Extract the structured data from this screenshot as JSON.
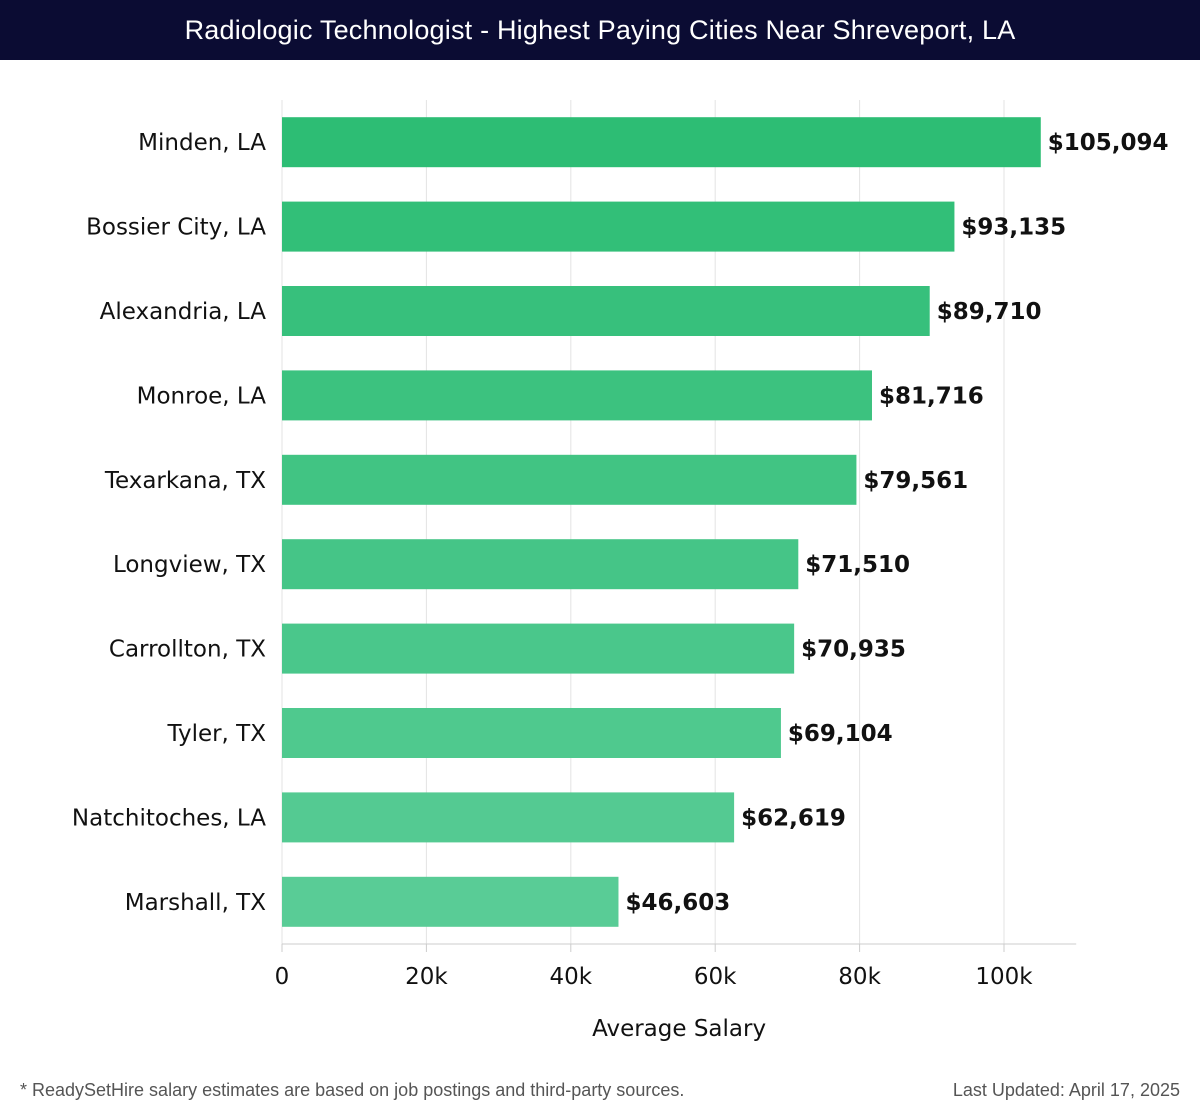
{
  "header": {
    "title": "Radiologic Technologist - Highest Paying Cities Near Shreveport, LA"
  },
  "chart_data": {
    "type": "bar",
    "orientation": "horizontal",
    "title": "Radiologic Technologist - Highest Paying Cities Near Shreveport, LA",
    "xlabel": "Average Salary",
    "ylabel": "",
    "xlim": [
      0,
      110000
    ],
    "xticks": [
      0,
      20000,
      40000,
      60000,
      80000,
      100000
    ],
    "xtick_labels": [
      "0",
      "20k",
      "40k",
      "60k",
      "80k",
      "100k"
    ],
    "grid": true,
    "categories": [
      "Minden, LA",
      "Bossier City, LA",
      "Alexandria, LA",
      "Monroe, LA",
      "Texarkana, TX",
      "Longview, TX",
      "Carrollton, TX",
      "Tyler, TX",
      "Natchitoches, LA",
      "Marshall, TX"
    ],
    "values": [
      105094,
      93135,
      89710,
      81716,
      79561,
      71510,
      70935,
      69104,
      62619,
      46603
    ],
    "value_labels": [
      "$105,094",
      "$93,135",
      "$89,710",
      "$81,716",
      "$79,561",
      "$71,510",
      "$70,935",
      "$69,104",
      "$62,619",
      "$46,603"
    ],
    "bar_color_top": "#2dbd74",
    "bar_color_bottom": "#59cc96"
  },
  "footer": {
    "note": "* ReadySetHire salary estimates are based on job postings and third-party sources.",
    "updated": "Last Updated: April 17, 2025"
  },
  "colors": {
    "header_bg": "#0b0c33",
    "grid": "#e3e3e3",
    "axis": "#cccccc",
    "text": "#111111",
    "footer_text": "#555555"
  }
}
